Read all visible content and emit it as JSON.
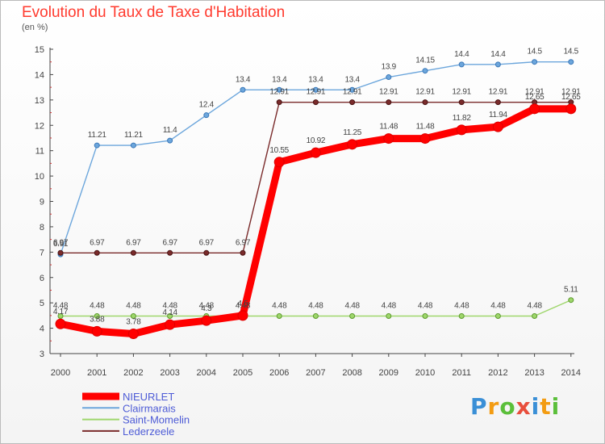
{
  "title": "Evolution du Taux de Taxe d'Habitation",
  "subtitle": "(en %)",
  "logo": {
    "text": "Proxiti",
    "colors": [
      "#3a8fd6",
      "#f39c12",
      "#5bbf3a",
      "#e84e3c",
      "#3a8fd6",
      "#f39c12",
      "#5bbf3a"
    ]
  },
  "chart_data": {
    "type": "line",
    "x": [
      2000,
      2001,
      2002,
      2003,
      2004,
      2005,
      2006,
      2007,
      2008,
      2009,
      2010,
      2011,
      2012,
      2013,
      2014
    ],
    "x_tick_labels": [
      "2000",
      "2001",
      "2002",
      "2003",
      "2004",
      "2005",
      "2006",
      "2007",
      "2008",
      "2009",
      "2010",
      "2011",
      "2012",
      "2013",
      "2014"
    ],
    "ylim": [
      3,
      15
    ],
    "y_ticks": [
      3,
      4,
      5,
      6,
      7,
      8,
      9,
      10,
      11,
      12,
      13,
      14,
      15
    ],
    "y_tick_labels": [
      "3",
      "4",
      "5",
      "6",
      "7",
      "8",
      "9",
      "10",
      "11",
      "12",
      "13",
      "14",
      "15"
    ],
    "grid": false,
    "legend_position": "bottom-left",
    "series": [
      {
        "name": "NIEURLET",
        "color": "#ff0000",
        "values": [
          4.17,
          3.88,
          3.78,
          4.14,
          4.3,
          4.5,
          10.55,
          10.92,
          11.25,
          11.48,
          11.48,
          11.82,
          11.94,
          12.65,
          12.65
        ],
        "labels": [
          "4.17",
          "3.88",
          "3.78",
          "4.14",
          "4.3",
          "4.5",
          "10.55",
          "10.92",
          "11.25",
          "11.48",
          "11.48",
          "11.82",
          "11.94",
          "12.65",
          "12.65"
        ]
      },
      {
        "name": "Clairmarais",
        "color": "#6ca6dc",
        "values": [
          6.91,
          11.21,
          11.21,
          11.4,
          12.4,
          13.4,
          13.4,
          13.4,
          13.4,
          13.9,
          14.15,
          14.4,
          14.4,
          14.5,
          14.5
        ],
        "labels": [
          "6.91",
          "11.21",
          "11.21",
          "11.4",
          "12.4",
          "13.4",
          "13.4",
          "13.4",
          "13.4",
          "13.9",
          "14.15",
          "14.4",
          "14.4",
          "14.5",
          "14.5"
        ]
      },
      {
        "name": "Saint-Momelin",
        "color": "#9ed66b",
        "values": [
          4.48,
          4.48,
          4.48,
          4.48,
          4.48,
          4.48,
          4.48,
          4.48,
          4.48,
          4.48,
          4.48,
          4.48,
          4.48,
          4.48,
          5.11
        ],
        "labels": [
          "4.48",
          "4.48",
          "4.48",
          "4.48",
          "4.48",
          "4.48",
          "4.48",
          "4.48",
          "4.48",
          "4.48",
          "4.48",
          "4.48",
          "4.48",
          "4.48",
          "5.11"
        ]
      },
      {
        "name": "Lederzeele",
        "color": "#7a2b2b",
        "values": [
          6.97,
          6.97,
          6.97,
          6.97,
          6.97,
          6.97,
          12.91,
          12.91,
          12.91,
          12.91,
          12.91,
          12.91,
          12.91,
          12.91,
          12.91
        ],
        "labels": [
          "6.97",
          "6.97",
          "6.97",
          "6.97",
          "6.97",
          "6.97",
          "12.91",
          "12.91",
          "12.91",
          "12.91",
          "12.91",
          "12.91",
          "12.91",
          "12.91",
          "12.91"
        ]
      }
    ]
  }
}
